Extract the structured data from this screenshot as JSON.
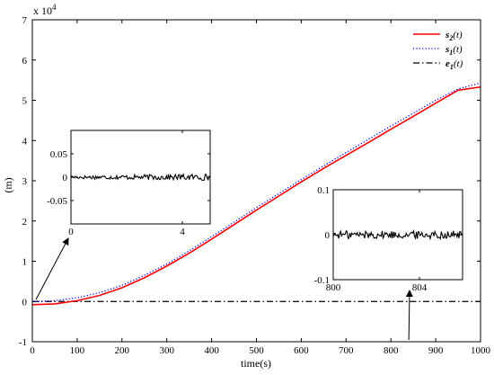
{
  "chart_data": {
    "type": "line",
    "xlabel": "time(s)",
    "ylabel": "(m)",
    "multiplier_text": "x 10",
    "multiplier_exp": "4",
    "xlim": [
      0,
      1000
    ],
    "ylim": [
      -1,
      7
    ],
    "xticks": [
      "0",
      "100",
      "200",
      "300",
      "400",
      "500",
      "600",
      "700",
      "800",
      "900",
      "1000"
    ],
    "yticks": [
      "-1",
      "0",
      "1",
      "2",
      "3",
      "4",
      "5",
      "6",
      "7"
    ],
    "legend_position": "top-right",
    "series": [
      {
        "name": "s_2(t)",
        "label_main": "s",
        "label_sub": "2",
        "label_arg": "(t)",
        "color": "#ff0000",
        "style": "solid",
        "x": [
          0,
          50,
          100,
          150,
          200,
          250,
          300,
          350,
          400,
          450,
          500,
          550,
          600,
          650,
          700,
          750,
          800,
          850,
          900,
          950,
          1000
        ],
        "y": [
          -0.08,
          -0.06,
          0.02,
          0.15,
          0.34,
          0.59,
          0.88,
          1.2,
          1.55,
          1.91,
          2.27,
          2.62,
          2.97,
          3.31,
          3.63,
          3.95,
          4.28,
          4.6,
          4.93,
          5.25,
          5.33
        ]
      },
      {
        "name": "s_1(t)",
        "label_main": "s",
        "label_sub": "1",
        "label_arg": "(t)",
        "color": "#0000ff",
        "style": "dotted",
        "x": [
          0,
          50,
          100,
          150,
          200,
          250,
          300,
          350,
          400,
          450,
          500,
          550,
          600,
          650,
          700,
          750,
          800,
          850,
          900,
          950,
          1000
        ],
        "y": [
          0,
          0.02,
          0.09,
          0.22,
          0.4,
          0.65,
          0.93,
          1.26,
          1.61,
          1.97,
          2.33,
          2.68,
          3.03,
          3.37,
          3.7,
          4.03,
          4.36,
          4.68,
          5.0,
          5.28,
          5.43
        ]
      },
      {
        "name": "e_1(t)",
        "label_main": "e",
        "label_sub": "1",
        "label_arg": "(t)",
        "color": "#000000",
        "style": "dashdot",
        "x": [
          0,
          1000
        ],
        "y": [
          0,
          0
        ]
      }
    ],
    "insets": [
      {
        "xlim": [
          0,
          5
        ],
        "ylim": [
          -0.1,
          0.1
        ],
        "xticks": [
          {
            "v": 0,
            "label": "0"
          },
          {
            "v": 4,
            "label": "4"
          }
        ],
        "yticks": [
          {
            "v": 0.05,
            "label": "0.05"
          },
          {
            "v": 0,
            "label": "0"
          },
          {
            "v": -0.05,
            "label": "-0.05"
          }
        ],
        "noise_amplitude": 0.006,
        "arrow_target_data": [
          0,
          0
        ]
      },
      {
        "xlim": [
          800,
          806
        ],
        "ylim": [
          -0.1,
          0.1
        ],
        "xticks": [
          {
            "v": 800,
            "label": "800"
          },
          {
            "v": 804,
            "label": "804"
          }
        ],
        "yticks": [
          {
            "v": 0.1,
            "label": "0.1"
          },
          {
            "v": 0,
            "label": "0"
          },
          {
            "v": -0.1,
            "label": "-0.1"
          }
        ],
        "noise_amplitude": 0.009,
        "arrow_target_data": [
          840,
          -1
        ]
      }
    ]
  }
}
